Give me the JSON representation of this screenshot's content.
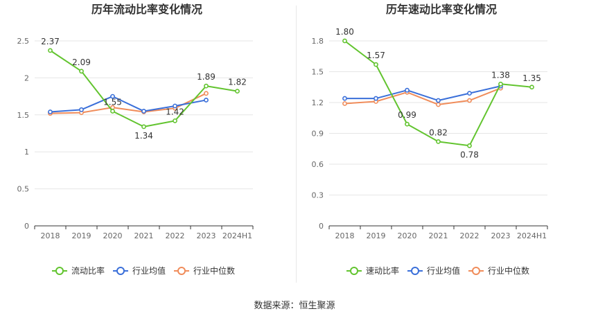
{
  "colors": {
    "text": "#333333",
    "axis_text": "#666666",
    "grid": "#e6e6e6",
    "axis": "#333333",
    "company": "#62c42f",
    "industry_avg": "#3a6fd9",
    "industry_median": "#f08c5a"
  },
  "source": "数据来源：恒生聚源",
  "chart_data": [
    {
      "type": "line",
      "title": "历年流动比率变化情况",
      "categories": [
        "2018",
        "2019",
        "2020",
        "2021",
        "2022",
        "2023",
        "2024H1"
      ],
      "ylim": [
        0,
        2.5
      ],
      "yticks": [
        "0",
        "0.5",
        "1",
        "1.5",
        "2",
        "2.5"
      ],
      "grid": true,
      "legend_position": "bottom",
      "series": [
        {
          "name": "流动比率",
          "color": "#62c42f",
          "labeled": true,
          "values": [
            2.37,
            2.09,
            1.55,
            1.34,
            1.42,
            1.89,
            1.82
          ],
          "labels": [
            "2.37",
            "2.09",
            "1.55",
            "1.34",
            "1.42",
            "1.89",
            "1.82"
          ]
        },
        {
          "name": "行业均值",
          "color": "#3a6fd9",
          "labeled": false,
          "values": [
            1.54,
            1.57,
            1.75,
            1.55,
            1.62,
            1.7,
            null
          ]
        },
        {
          "name": "行业中位数",
          "color": "#f08c5a",
          "labeled": false,
          "values": [
            1.52,
            1.53,
            1.6,
            1.54,
            1.59,
            1.79,
            null
          ]
        }
      ]
    },
    {
      "type": "line",
      "title": "历年速动比率变化情况",
      "categories": [
        "2018",
        "2019",
        "2020",
        "2021",
        "2022",
        "2023",
        "2024H1"
      ],
      "ylim": [
        0,
        1.8
      ],
      "yticks": [
        "0",
        "0.3",
        "0.6",
        "0.9",
        "1.2",
        "1.5",
        "1.8"
      ],
      "grid": true,
      "legend_position": "bottom",
      "series": [
        {
          "name": "速动比率",
          "color": "#62c42f",
          "labeled": true,
          "values": [
            1.8,
            1.57,
            0.99,
            0.82,
            0.78,
            1.38,
            1.35
          ],
          "labels": [
            "1.80",
            "1.57",
            "0.99",
            "0.82",
            "0.78",
            "1.38",
            "1.35"
          ]
        },
        {
          "name": "行业均值",
          "color": "#3a6fd9",
          "labeled": false,
          "values": [
            1.24,
            1.24,
            1.32,
            1.22,
            1.29,
            1.36,
            null
          ]
        },
        {
          "name": "行业中位数",
          "color": "#f08c5a",
          "labeled": false,
          "values": [
            1.19,
            1.21,
            1.3,
            1.18,
            1.22,
            1.34,
            null
          ]
        }
      ]
    }
  ]
}
